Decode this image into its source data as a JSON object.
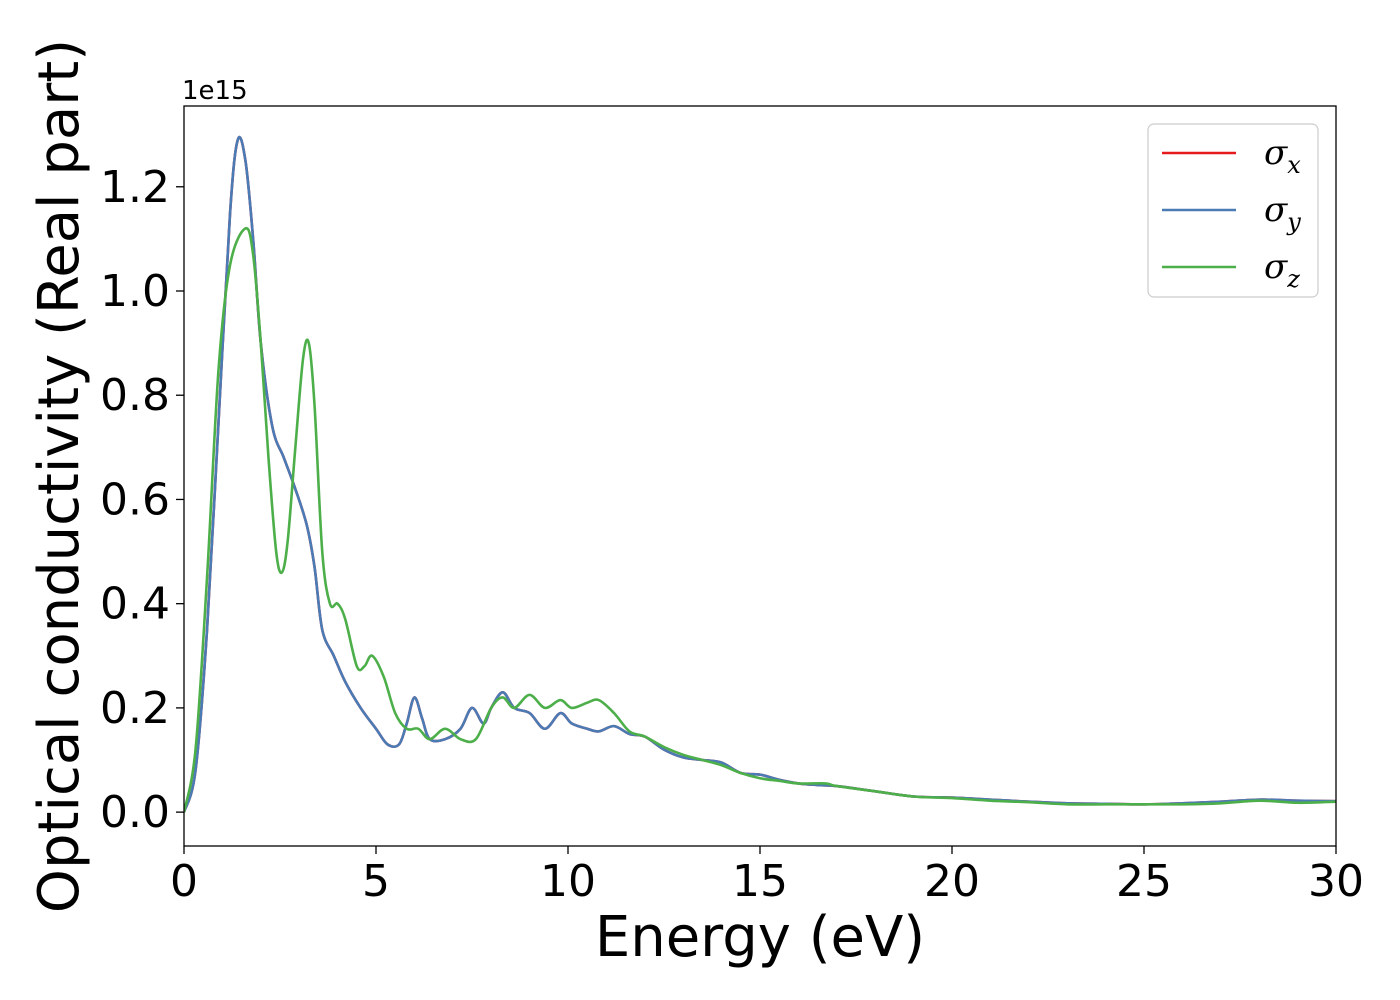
{
  "chart_data": {
    "type": "line",
    "xlabel": "Energy (eV)",
    "ylabel": "Optical conductivity (Real part)",
    "y_offset_label": "1e15",
    "xlim": [
      0,
      30
    ],
    "ylim": [
      -0.065,
      1.355
    ],
    "x_ticks": [
      0,
      5,
      10,
      15,
      20,
      25,
      30
    ],
    "y_ticks": [
      0.0,
      0.2,
      0.4,
      0.6,
      0.8,
      1.0,
      1.2
    ],
    "x_tick_labels": [
      "0",
      "5",
      "10",
      "15",
      "20",
      "25",
      "30"
    ],
    "y_tick_labels": [
      "0.0",
      "0.2",
      "0.4",
      "0.6",
      "0.8",
      "1.0",
      "1.2"
    ],
    "grid": false,
    "legend_position": "top-right",
    "series": [
      {
        "name": "σx",
        "symbol": "σ",
        "subscript": "x",
        "color": "#e41a1c",
        "points": [
          [
            0,
            0
          ],
          [
            0.3,
            0.08
          ],
          [
            0.6,
            0.35
          ],
          [
            0.9,
            0.75
          ],
          [
            1.2,
            1.15
          ],
          [
            1.4,
            1.29
          ],
          [
            1.6,
            1.25
          ],
          [
            1.8,
            1.1
          ],
          [
            2.0,
            0.9
          ],
          [
            2.3,
            0.74
          ],
          [
            2.6,
            0.68
          ],
          [
            2.9,
            0.62
          ],
          [
            3.2,
            0.55
          ],
          [
            3.4,
            0.47
          ],
          [
            3.6,
            0.35
          ],
          [
            3.9,
            0.3
          ],
          [
            4.2,
            0.25
          ],
          [
            4.6,
            0.2
          ],
          [
            5.0,
            0.16
          ],
          [
            5.3,
            0.13
          ],
          [
            5.6,
            0.13
          ],
          [
            5.8,
            0.17
          ],
          [
            6.0,
            0.22
          ],
          [
            6.2,
            0.18
          ],
          [
            6.4,
            0.14
          ],
          [
            6.8,
            0.14
          ],
          [
            7.2,
            0.16
          ],
          [
            7.5,
            0.2
          ],
          [
            7.8,
            0.17
          ],
          [
            8.0,
            0.2
          ],
          [
            8.3,
            0.23
          ],
          [
            8.6,
            0.2
          ],
          [
            9.0,
            0.19
          ],
          [
            9.4,
            0.16
          ],
          [
            9.8,
            0.19
          ],
          [
            10.1,
            0.17
          ],
          [
            10.5,
            0.16
          ],
          [
            10.8,
            0.155
          ],
          [
            11.2,
            0.165
          ],
          [
            11.6,
            0.15
          ],
          [
            12.0,
            0.145
          ],
          [
            12.5,
            0.12
          ],
          [
            13.0,
            0.105
          ],
          [
            13.5,
            0.1
          ],
          [
            14.0,
            0.095
          ],
          [
            14.5,
            0.075
          ],
          [
            15.0,
            0.072
          ],
          [
            15.5,
            0.062
          ],
          [
            16.0,
            0.055
          ],
          [
            16.5,
            0.052
          ],
          [
            17.0,
            0.05
          ],
          [
            18.0,
            0.04
          ],
          [
            19.0,
            0.03
          ],
          [
            20.0,
            0.028
          ],
          [
            21.0,
            0.024
          ],
          [
            22.0,
            0.02
          ],
          [
            23.0,
            0.017
          ],
          [
            24.0,
            0.016
          ],
          [
            25.0,
            0.015
          ],
          [
            26.0,
            0.017
          ],
          [
            27.0,
            0.02
          ],
          [
            28.0,
            0.024
          ],
          [
            29.0,
            0.022
          ],
          [
            30.0,
            0.021
          ]
        ]
      },
      {
        "name": "σy",
        "symbol": "σ",
        "subscript": "y",
        "color": "#4a7bb5",
        "points": [
          [
            0,
            0
          ],
          [
            0.3,
            0.08
          ],
          [
            0.6,
            0.35
          ],
          [
            0.9,
            0.75
          ],
          [
            1.2,
            1.15
          ],
          [
            1.4,
            1.29
          ],
          [
            1.6,
            1.25
          ],
          [
            1.8,
            1.1
          ],
          [
            2.0,
            0.9
          ],
          [
            2.3,
            0.74
          ],
          [
            2.6,
            0.68
          ],
          [
            2.9,
            0.62
          ],
          [
            3.2,
            0.55
          ],
          [
            3.4,
            0.47
          ],
          [
            3.6,
            0.35
          ],
          [
            3.9,
            0.3
          ],
          [
            4.2,
            0.25
          ],
          [
            4.6,
            0.2
          ],
          [
            5.0,
            0.16
          ],
          [
            5.3,
            0.13
          ],
          [
            5.6,
            0.13
          ],
          [
            5.8,
            0.17
          ],
          [
            6.0,
            0.22
          ],
          [
            6.2,
            0.18
          ],
          [
            6.4,
            0.14
          ],
          [
            6.8,
            0.14
          ],
          [
            7.2,
            0.16
          ],
          [
            7.5,
            0.2
          ],
          [
            7.8,
            0.17
          ],
          [
            8.0,
            0.2
          ],
          [
            8.3,
            0.23
          ],
          [
            8.6,
            0.2
          ],
          [
            9.0,
            0.19
          ],
          [
            9.4,
            0.16
          ],
          [
            9.8,
            0.19
          ],
          [
            10.1,
            0.17
          ],
          [
            10.5,
            0.16
          ],
          [
            10.8,
            0.155
          ],
          [
            11.2,
            0.165
          ],
          [
            11.6,
            0.15
          ],
          [
            12.0,
            0.145
          ],
          [
            12.5,
            0.12
          ],
          [
            13.0,
            0.105
          ],
          [
            13.5,
            0.1
          ],
          [
            14.0,
            0.095
          ],
          [
            14.5,
            0.075
          ],
          [
            15.0,
            0.072
          ],
          [
            15.5,
            0.062
          ],
          [
            16.0,
            0.055
          ],
          [
            16.5,
            0.052
          ],
          [
            17.0,
            0.05
          ],
          [
            18.0,
            0.04
          ],
          [
            19.0,
            0.03
          ],
          [
            20.0,
            0.028
          ],
          [
            21.0,
            0.024
          ],
          [
            22.0,
            0.02
          ],
          [
            23.0,
            0.017
          ],
          [
            24.0,
            0.016
          ],
          [
            25.0,
            0.015
          ],
          [
            26.0,
            0.017
          ],
          [
            27.0,
            0.02
          ],
          [
            28.0,
            0.024
          ],
          [
            29.0,
            0.022
          ],
          [
            30.0,
            0.021
          ]
        ]
      },
      {
        "name": "σz",
        "symbol": "σ",
        "subscript": "z",
        "color": "#4daf4a",
        "points": [
          [
            0,
            0
          ],
          [
            0.3,
            0.12
          ],
          [
            0.6,
            0.45
          ],
          [
            0.9,
            0.85
          ],
          [
            1.2,
            1.05
          ],
          [
            1.6,
            1.12
          ],
          [
            1.8,
            1.07
          ],
          [
            2.0,
            0.9
          ],
          [
            2.2,
            0.68
          ],
          [
            2.4,
            0.5
          ],
          [
            2.55,
            0.46
          ],
          [
            2.7,
            0.52
          ],
          [
            2.9,
            0.7
          ],
          [
            3.1,
            0.87
          ],
          [
            3.25,
            0.9
          ],
          [
            3.4,
            0.78
          ],
          [
            3.6,
            0.5
          ],
          [
            3.8,
            0.4
          ],
          [
            4.0,
            0.4
          ],
          [
            4.2,
            0.37
          ],
          [
            4.5,
            0.28
          ],
          [
            4.7,
            0.28
          ],
          [
            4.9,
            0.3
          ],
          [
            5.2,
            0.26
          ],
          [
            5.5,
            0.19
          ],
          [
            5.8,
            0.16
          ],
          [
            6.1,
            0.16
          ],
          [
            6.4,
            0.14
          ],
          [
            6.8,
            0.16
          ],
          [
            7.2,
            0.14
          ],
          [
            7.6,
            0.14
          ],
          [
            8.0,
            0.2
          ],
          [
            8.3,
            0.22
          ],
          [
            8.6,
            0.2
          ],
          [
            9.0,
            0.225
          ],
          [
            9.4,
            0.2
          ],
          [
            9.8,
            0.215
          ],
          [
            10.1,
            0.2
          ],
          [
            10.5,
            0.21
          ],
          [
            10.8,
            0.215
          ],
          [
            11.2,
            0.19
          ],
          [
            11.6,
            0.155
          ],
          [
            12.0,
            0.145
          ],
          [
            12.5,
            0.125
          ],
          [
            13.0,
            0.11
          ],
          [
            13.5,
            0.1
          ],
          [
            14.0,
            0.09
          ],
          [
            14.5,
            0.075
          ],
          [
            15.0,
            0.065
          ],
          [
            15.5,
            0.06
          ],
          [
            16.0,
            0.055
          ],
          [
            16.7,
            0.055
          ],
          [
            17.0,
            0.05
          ],
          [
            18.0,
            0.04
          ],
          [
            19.0,
            0.03
          ],
          [
            20.0,
            0.027
          ],
          [
            21.0,
            0.022
          ],
          [
            22.0,
            0.019
          ],
          [
            23.0,
            0.015
          ],
          [
            24.0,
            0.015
          ],
          [
            25.0,
            0.015
          ],
          [
            26.0,
            0.015
          ],
          [
            27.0,
            0.017
          ],
          [
            28.0,
            0.022
          ],
          [
            29.0,
            0.018
          ],
          [
            30.0,
            0.02
          ]
        ]
      }
    ]
  }
}
